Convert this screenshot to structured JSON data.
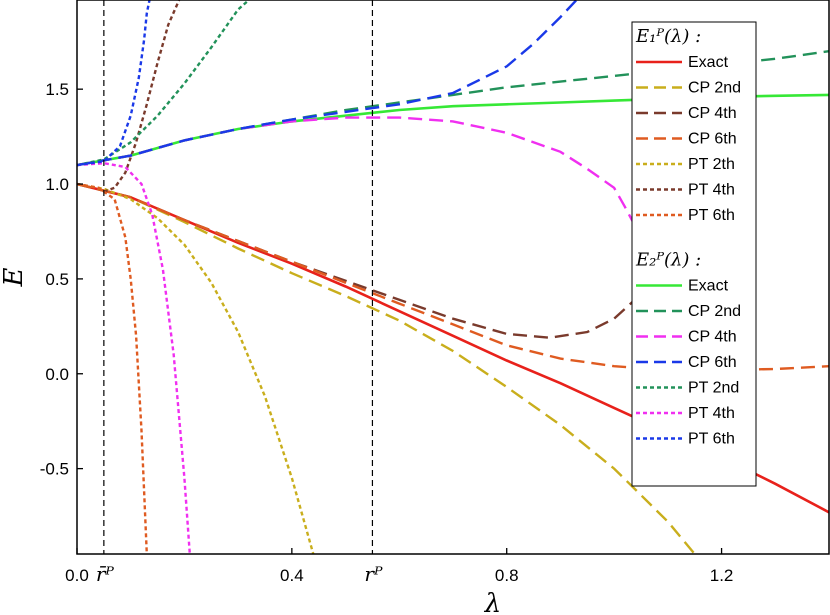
{
  "chart_data": {
    "type": "line",
    "xlabel": "λ",
    "ylabel": "E",
    "xlim": [
      0,
      1.4
    ],
    "ylim": [
      -0.95,
      1.97
    ],
    "x_ticks": [
      0.0,
      0.4,
      0.8,
      1.2
    ],
    "x_tick_labels": [
      "0.0",
      "0.4",
      "0.8",
      "1.2"
    ],
    "y_ticks": [
      -0.5,
      0.0,
      0.5,
      1.0,
      1.5
    ],
    "y_tick_labels": [
      "-0.5",
      "0.0",
      "0.5",
      "1.0",
      "1.5"
    ],
    "grid": false,
    "legend_position": "right",
    "vlines": [
      {
        "x": 0.05,
        "label": "r̄ᴾ"
      },
      {
        "x": 0.55,
        "label": "rᴾ"
      }
    ],
    "legend_groups": [
      {
        "title": "E₁ᴾ(λ) :",
        "entries": [
          {
            "label": "Exact",
            "color": "#e8211b",
            "style": "solid"
          },
          {
            "label": "CP 2nd",
            "color": "#c9ae1c",
            "style": "dashed"
          },
          {
            "label": "CP 4th",
            "color": "#7a3a2c",
            "style": "dashed"
          },
          {
            "label": "CP 6th",
            "color": "#df5b21",
            "style": "dashed"
          },
          {
            "label": "PT 2th",
            "color": "#c9ae1c",
            "style": "dotted"
          },
          {
            "label": "PT 4th",
            "color": "#7a3a2c",
            "style": "dotted"
          },
          {
            "label": "PT 6th",
            "color": "#df5b21",
            "style": "dotted"
          }
        ]
      },
      {
        "title": "E₂ᴾ(λ) :",
        "entries": [
          {
            "label": "Exact",
            "color": "#36e836",
            "style": "solid"
          },
          {
            "label": "CP 2nd",
            "color": "#22925a",
            "style": "dashed"
          },
          {
            "label": "CP 4th",
            "color": "#f02ff0",
            "style": "dashed"
          },
          {
            "label": "CP 6th",
            "color": "#1a39e8",
            "style": "dashed"
          },
          {
            "label": "PT 2nd",
            "color": "#22925a",
            "style": "dotted"
          },
          {
            "label": "PT 4th",
            "color": "#f02ff0",
            "style": "dotted"
          },
          {
            "label": "PT 6th",
            "color": "#1a39e8",
            "style": "dotted"
          }
        ]
      }
    ],
    "series": [
      {
        "group": 0,
        "style": "solid",
        "color": "#e8211b",
        "x": [
          0,
          0.1,
          0.2,
          0.3,
          0.4,
          0.5,
          0.6,
          0.7,
          0.8,
          0.9,
          1.0,
          1.1,
          1.2,
          1.3,
          1.4
        ],
        "y": [
          1.0,
          0.93,
          0.81,
          0.69,
          0.58,
          0.46,
          0.33,
          0.2,
          0.07,
          -0.05,
          -0.18,
          -0.31,
          -0.44,
          -0.58,
          -0.73
        ]
      },
      {
        "group": 0,
        "style": "dashed",
        "color": "#c9ae1c",
        "x": [
          0,
          0.1,
          0.2,
          0.3,
          0.4,
          0.5,
          0.6,
          0.7,
          0.8,
          0.9,
          1.0,
          1.1,
          1.15
        ],
        "y": [
          1.0,
          0.93,
          0.8,
          0.66,
          0.53,
          0.41,
          0.28,
          0.12,
          -0.07,
          -0.27,
          -0.5,
          -0.78,
          -0.95
        ]
      },
      {
        "group": 0,
        "style": "dashed",
        "color": "#7a3a2c",
        "x": [
          0,
          0.1,
          0.2,
          0.3,
          0.4,
          0.5,
          0.6,
          0.7,
          0.8,
          0.88,
          0.95,
          1.0,
          1.05,
          1.08
        ],
        "y": [
          1.0,
          0.93,
          0.81,
          0.7,
          0.59,
          0.49,
          0.39,
          0.29,
          0.21,
          0.19,
          0.22,
          0.29,
          0.42,
          0.52
        ]
      },
      {
        "group": 0,
        "style": "dashed",
        "color": "#df5b21",
        "x": [
          0,
          0.1,
          0.2,
          0.3,
          0.4,
          0.5,
          0.6,
          0.7,
          0.8,
          0.9,
          1.0,
          1.1,
          1.2,
          1.3,
          1.4
        ],
        "y": [
          1.0,
          0.93,
          0.81,
          0.7,
          0.59,
          0.48,
          0.37,
          0.26,
          0.15,
          0.08,
          0.04,
          0.02,
          0.02,
          0.025,
          0.04
        ]
      },
      {
        "group": 0,
        "style": "dotted",
        "color": "#c9ae1c",
        "x": [
          0,
          0.05,
          0.1,
          0.15,
          0.2,
          0.25,
          0.3,
          0.35,
          0.4,
          0.44
        ],
        "y": [
          1.0,
          0.975,
          0.92,
          0.82,
          0.68,
          0.48,
          0.22,
          -0.12,
          -0.55,
          -0.95
        ]
      },
      {
        "group": 0,
        "style": "dotted",
        "color": "#7a3a2c",
        "x": [
          0.05,
          0.07,
          0.09,
          0.11,
          0.13,
          0.15,
          0.17,
          0.19
        ],
        "y": [
          0.96,
          0.98,
          1.06,
          1.22,
          1.42,
          1.64,
          1.84,
          1.97
        ]
      },
      {
        "group": 0,
        "style": "dotted",
        "color": "#df5b21",
        "x": [
          0,
          0.04,
          0.07,
          0.09,
          0.1,
          0.11,
          0.12,
          0.13
        ],
        "y": [
          1.0,
          0.98,
          0.92,
          0.72,
          0.5,
          0.2,
          -0.3,
          -0.95
        ]
      },
      {
        "group": 1,
        "style": "solid",
        "color": "#36e836",
        "x": [
          0,
          0.1,
          0.2,
          0.3,
          0.4,
          0.5,
          0.6,
          0.7,
          0.8,
          0.9,
          1.0,
          1.1,
          1.2,
          1.3,
          1.4
        ],
        "y": [
          1.1,
          1.15,
          1.23,
          1.29,
          1.33,
          1.36,
          1.39,
          1.41,
          1.42,
          1.43,
          1.44,
          1.45,
          1.46,
          1.465,
          1.47
        ]
      },
      {
        "group": 1,
        "style": "dashed",
        "color": "#22925a",
        "x": [
          0,
          0.1,
          0.2,
          0.3,
          0.4,
          0.5,
          0.6,
          0.7,
          0.8,
          0.9,
          1.0,
          1.1,
          1.2,
          1.3,
          1.4
        ],
        "y": [
          1.1,
          1.15,
          1.23,
          1.29,
          1.34,
          1.39,
          1.43,
          1.47,
          1.51,
          1.54,
          1.57,
          1.6,
          1.63,
          1.66,
          1.7
        ]
      },
      {
        "group": 1,
        "style": "dashed",
        "color": "#f02ff0",
        "x": [
          0,
          0.1,
          0.2,
          0.3,
          0.4,
          0.5,
          0.6,
          0.7,
          0.8,
          0.9,
          0.95,
          1.0,
          1.02,
          1.05,
          1.08
        ],
        "y": [
          1.1,
          1.15,
          1.23,
          1.29,
          1.33,
          1.35,
          1.35,
          1.33,
          1.27,
          1.17,
          1.08,
          0.98,
          0.88,
          0.72,
          0.52
        ]
      },
      {
        "group": 1,
        "style": "dashed",
        "color": "#1a39e8",
        "x": [
          0,
          0.1,
          0.2,
          0.3,
          0.4,
          0.5,
          0.6,
          0.7,
          0.8,
          0.85,
          0.9,
          0.93
        ],
        "y": [
          1.1,
          1.15,
          1.23,
          1.29,
          1.34,
          1.38,
          1.42,
          1.48,
          1.62,
          1.74,
          1.88,
          1.97
        ]
      },
      {
        "group": 1,
        "style": "dotted",
        "color": "#22925a",
        "x": [
          0,
          0.05,
          0.1,
          0.15,
          0.2,
          0.25,
          0.3,
          0.32
        ],
        "y": [
          1.1,
          1.13,
          1.22,
          1.36,
          1.53,
          1.72,
          1.92,
          1.97
        ]
      },
      {
        "group": 1,
        "style": "dotted",
        "color": "#f02ff0",
        "x": [
          0,
          0.05,
          0.09,
          0.12,
          0.14,
          0.16,
          0.18,
          0.2,
          0.21
        ],
        "y": [
          1.1,
          1.11,
          1.09,
          1.0,
          0.84,
          0.55,
          0.1,
          -0.55,
          -0.95
        ]
      },
      {
        "group": 1,
        "style": "dotted",
        "color": "#1a39e8",
        "x": [
          0,
          0.05,
          0.08,
          0.1,
          0.115,
          0.125,
          0.13,
          0.135
        ],
        "y": [
          1.1,
          1.12,
          1.2,
          1.36,
          1.56,
          1.76,
          1.9,
          1.97
        ]
      }
    ]
  }
}
